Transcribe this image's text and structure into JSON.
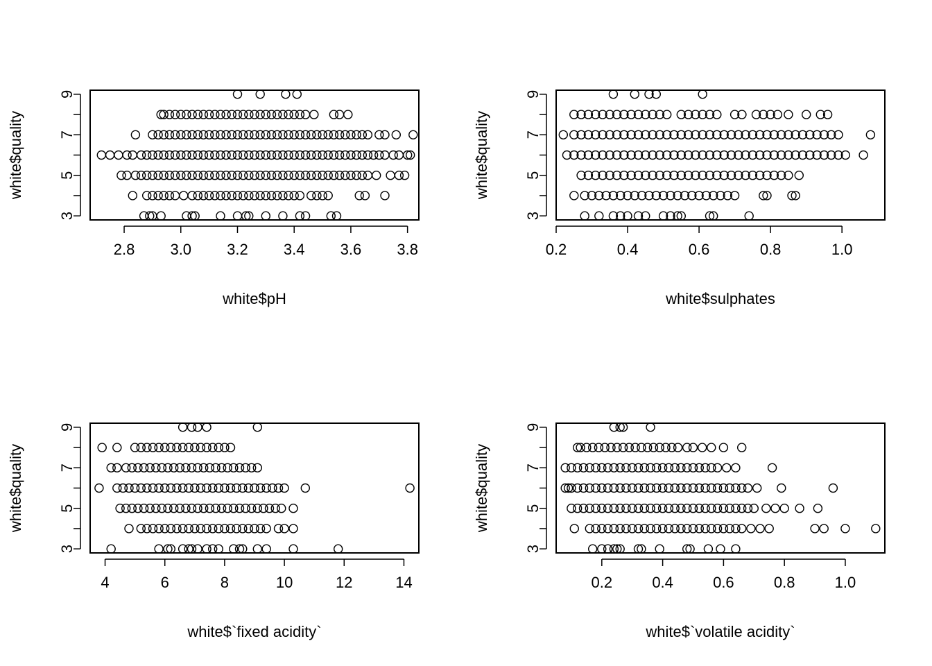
{
  "chart_data": [
    {
      "type": "scatter",
      "xlabel": "white$pH",
      "ylabel": "white$quality",
      "xlim": [
        2.68,
        3.84
      ],
      "ylim": [
        2.8,
        9.2
      ],
      "xticks": [
        2.8,
        3.0,
        3.2,
        3.4,
        3.6,
        3.8
      ],
      "xtick_labels": [
        "2.8",
        "3.0",
        "3.2",
        "3.4",
        "3.6",
        "3.8"
      ],
      "yticks": [
        3,
        4,
        5,
        6,
        7,
        8,
        9
      ],
      "ytick_labels": [
        "3",
        "",
        "5",
        "",
        "7",
        "",
        "9"
      ],
      "points": {
        "3": [
          2.87,
          2.89,
          2.9,
          2.93,
          3.02,
          3.04,
          3.05,
          3.14,
          3.2,
          3.23,
          3.24,
          3.3,
          3.36,
          3.42,
          3.44,
          3.53,
          3.55
        ],
        "4": [
          2.83,
          2.88,
          2.9,
          2.92,
          2.94,
          2.96,
          2.98,
          3.01,
          3.04,
          3.06,
          3.08,
          3.1,
          3.12,
          3.14,
          3.16,
          3.18,
          3.2,
          3.22,
          3.24,
          3.26,
          3.28,
          3.3,
          3.32,
          3.34,
          3.36,
          3.38,
          3.4,
          3.42,
          3.46,
          3.48,
          3.5,
          3.52,
          3.63,
          3.65,
          3.72
        ],
        "5": [
          2.79,
          2.81,
          2.84,
          2.86,
          2.88,
          2.9,
          2.92,
          2.94,
          2.96,
          2.98,
          3.0,
          3.02,
          3.04,
          3.06,
          3.08,
          3.1,
          3.12,
          3.14,
          3.16,
          3.18,
          3.2,
          3.22,
          3.24,
          3.26,
          3.28,
          3.3,
          3.32,
          3.34,
          3.36,
          3.38,
          3.4,
          3.42,
          3.44,
          3.46,
          3.48,
          3.5,
          3.52,
          3.54,
          3.56,
          3.58,
          3.6,
          3.62,
          3.64,
          3.66,
          3.69,
          3.74,
          3.77,
          3.79
        ],
        "6": [
          2.72,
          2.75,
          2.78,
          2.81,
          2.83,
          2.86,
          2.88,
          2.9,
          2.92,
          2.94,
          2.96,
          2.98,
          3.0,
          3.02,
          3.04,
          3.06,
          3.08,
          3.1,
          3.12,
          3.14,
          3.16,
          3.18,
          3.2,
          3.22,
          3.24,
          3.26,
          3.28,
          3.3,
          3.32,
          3.34,
          3.36,
          3.38,
          3.4,
          3.42,
          3.44,
          3.46,
          3.48,
          3.5,
          3.52,
          3.54,
          3.56,
          3.58,
          3.6,
          3.62,
          3.64,
          3.66,
          3.68,
          3.7,
          3.72,
          3.75,
          3.77,
          3.8,
          3.81
        ],
        "7": [
          2.84,
          2.9,
          2.92,
          2.94,
          2.96,
          2.98,
          3.0,
          3.02,
          3.04,
          3.06,
          3.08,
          3.1,
          3.12,
          3.14,
          3.16,
          3.18,
          3.2,
          3.22,
          3.24,
          3.26,
          3.28,
          3.3,
          3.32,
          3.34,
          3.36,
          3.38,
          3.4,
          3.42,
          3.44,
          3.46,
          3.48,
          3.5,
          3.52,
          3.54,
          3.56,
          3.58,
          3.6,
          3.62,
          3.64,
          3.66,
          3.7,
          3.72,
          3.76,
          3.82
        ],
        "8": [
          2.93,
          2.94,
          2.96,
          2.98,
          3.0,
          3.02,
          3.04,
          3.06,
          3.08,
          3.1,
          3.12,
          3.14,
          3.16,
          3.18,
          3.2,
          3.22,
          3.24,
          3.26,
          3.28,
          3.3,
          3.32,
          3.34,
          3.36,
          3.38,
          3.4,
          3.42,
          3.44,
          3.47,
          3.54,
          3.56,
          3.59
        ],
        "9": [
          3.2,
          3.28,
          3.37,
          3.41
        ]
      }
    },
    {
      "type": "scatter",
      "xlabel": "white$sulphates",
      "ylabel": "white$quality",
      "xlim": [
        0.2,
        1.12
      ],
      "ylim": [
        2.8,
        9.2
      ],
      "xticks": [
        0.2,
        0.4,
        0.6,
        0.8,
        1.0
      ],
      "xtick_labels": [
        "0.2",
        "0.4",
        "0.6",
        "0.8",
        "1.0"
      ],
      "yticks": [
        3,
        4,
        5,
        6,
        7,
        8,
        9
      ],
      "ytick_labels": [
        "3",
        "",
        "5",
        "",
        "7",
        "",
        "9"
      ],
      "points": {
        "3": [
          0.28,
          0.32,
          0.36,
          0.38,
          0.4,
          0.43,
          0.45,
          0.5,
          0.52,
          0.54,
          0.55,
          0.63,
          0.64,
          0.74
        ],
        "4": [
          0.25,
          0.28,
          0.3,
          0.32,
          0.34,
          0.36,
          0.38,
          0.4,
          0.42,
          0.44,
          0.46,
          0.48,
          0.5,
          0.52,
          0.54,
          0.56,
          0.58,
          0.6,
          0.62,
          0.64,
          0.66,
          0.68,
          0.7,
          0.78,
          0.79,
          0.86,
          0.87
        ],
        "5": [
          0.27,
          0.29,
          0.31,
          0.33,
          0.35,
          0.37,
          0.39,
          0.41,
          0.43,
          0.45,
          0.47,
          0.49,
          0.51,
          0.53,
          0.55,
          0.57,
          0.59,
          0.61,
          0.63,
          0.65,
          0.67,
          0.69,
          0.71,
          0.73,
          0.75,
          0.77,
          0.79,
          0.81,
          0.83,
          0.85,
          0.88
        ],
        "6": [
          0.23,
          0.25,
          0.27,
          0.29,
          0.31,
          0.33,
          0.35,
          0.37,
          0.39,
          0.41,
          0.43,
          0.45,
          0.47,
          0.49,
          0.51,
          0.53,
          0.55,
          0.57,
          0.59,
          0.61,
          0.63,
          0.65,
          0.67,
          0.69,
          0.71,
          0.73,
          0.75,
          0.77,
          0.79,
          0.81,
          0.83,
          0.85,
          0.87,
          0.89,
          0.91,
          0.93,
          0.95,
          0.97,
          0.99,
          1.01,
          1.06
        ],
        "7": [
          0.22,
          0.25,
          0.27,
          0.29,
          0.31,
          0.33,
          0.35,
          0.37,
          0.39,
          0.41,
          0.43,
          0.45,
          0.47,
          0.49,
          0.51,
          0.53,
          0.55,
          0.57,
          0.59,
          0.61,
          0.63,
          0.65,
          0.67,
          0.69,
          0.71,
          0.73,
          0.75,
          0.77,
          0.79,
          0.81,
          0.83,
          0.85,
          0.87,
          0.89,
          0.91,
          0.93,
          0.95,
          0.97,
          0.99,
          1.08
        ],
        "8": [
          0.25,
          0.27,
          0.29,
          0.31,
          0.33,
          0.35,
          0.37,
          0.39,
          0.41,
          0.43,
          0.45,
          0.47,
          0.49,
          0.51,
          0.55,
          0.57,
          0.59,
          0.61,
          0.63,
          0.65,
          0.7,
          0.72,
          0.76,
          0.78,
          0.8,
          0.82,
          0.85,
          0.9,
          0.94,
          0.96
        ],
        "9": [
          0.36,
          0.42,
          0.46,
          0.48,
          0.61
        ]
      }
    },
    {
      "type": "scatter",
      "xlabel": "white$`fixed acidity`",
      "ylabel": "white$quality",
      "xlim": [
        3.5,
        14.5
      ],
      "ylim": [
        2.8,
        9.2
      ],
      "xticks": [
        4,
        6,
        8,
        10,
        12,
        14
      ],
      "xtick_labels": [
        "4",
        "6",
        "8",
        "10",
        "12",
        "14"
      ],
      "yticks": [
        3,
        4,
        5,
        6,
        7,
        8,
        9
      ],
      "ytick_labels": [
        "3",
        "",
        "5",
        "",
        "7",
        "",
        "9"
      ],
      "points": {
        "3": [
          4.2,
          5.8,
          6.1,
          6.2,
          6.6,
          6.8,
          6.9,
          7.1,
          7.4,
          7.6,
          7.8,
          8.3,
          8.5,
          8.6,
          9.1,
          9.4,
          10.3,
          11.8
        ],
        "4": [
          4.8,
          5.2,
          5.4,
          5.6,
          5.8,
          6.0,
          6.2,
          6.4,
          6.6,
          6.8,
          7.0,
          7.2,
          7.4,
          7.6,
          7.8,
          8.0,
          8.2,
          8.4,
          8.6,
          8.8,
          9.0,
          9.2,
          9.4,
          9.8,
          10.0,
          10.3
        ],
        "5": [
          4.5,
          4.7,
          4.9,
          5.1,
          5.3,
          5.5,
          5.7,
          5.9,
          6.1,
          6.3,
          6.5,
          6.7,
          6.9,
          7.1,
          7.3,
          7.5,
          7.7,
          7.9,
          8.1,
          8.3,
          8.5,
          8.7,
          8.9,
          9.1,
          9.3,
          9.5,
          9.7,
          9.9,
          10.3
        ],
        "6": [
          3.8,
          4.4,
          4.6,
          4.8,
          5.0,
          5.2,
          5.4,
          5.6,
          5.8,
          6.0,
          6.2,
          6.4,
          6.6,
          6.8,
          7.0,
          7.2,
          7.4,
          7.6,
          7.8,
          8.0,
          8.2,
          8.4,
          8.6,
          8.8,
          9.0,
          9.2,
          9.4,
          9.6,
          9.8,
          10.0,
          10.7,
          14.2
        ],
        "7": [
          4.2,
          4.4,
          4.7,
          4.9,
          5.1,
          5.3,
          5.5,
          5.7,
          5.9,
          6.1,
          6.3,
          6.5,
          6.7,
          6.9,
          7.1,
          7.3,
          7.5,
          7.7,
          7.9,
          8.1,
          8.3,
          8.5,
          8.7,
          8.9,
          9.1
        ],
        "8": [
          3.9,
          4.4,
          5.0,
          5.2,
          5.4,
          5.6,
          5.8,
          6.0,
          6.2,
          6.4,
          6.6,
          6.8,
          7.0,
          7.2,
          7.4,
          7.6,
          7.8,
          8.0,
          8.2
        ],
        "9": [
          6.6,
          6.9,
          7.1,
          7.4,
          9.1
        ]
      }
    },
    {
      "type": "scatter",
      "xlabel": "white$`volatile acidity`",
      "ylabel": "white$quality",
      "xlim": [
        0.05,
        1.13
      ],
      "ylim": [
        2.8,
        9.2
      ],
      "xticks": [
        0.2,
        0.4,
        0.6,
        0.8,
        1.0
      ],
      "xtick_labels": [
        "0.2",
        "0.4",
        "0.6",
        "0.8",
        "1.0"
      ],
      "yticks": [
        3,
        4,
        5,
        6,
        7,
        8,
        9
      ],
      "ytick_labels": [
        "3",
        "",
        "5",
        "",
        "7",
        "",
        "9"
      ],
      "points": {
        "3": [
          0.17,
          0.2,
          0.22,
          0.24,
          0.25,
          0.26,
          0.32,
          0.33,
          0.39,
          0.48,
          0.49,
          0.55,
          0.59,
          0.64
        ],
        "4": [
          0.11,
          0.16,
          0.18,
          0.2,
          0.22,
          0.24,
          0.26,
          0.28,
          0.3,
          0.32,
          0.34,
          0.36,
          0.38,
          0.4,
          0.42,
          0.44,
          0.46,
          0.48,
          0.5,
          0.52,
          0.54,
          0.56,
          0.58,
          0.6,
          0.62,
          0.64,
          0.66,
          0.69,
          0.72,
          0.75,
          0.9,
          0.93,
          1.0,
          1.1
        ],
        "5": [
          0.1,
          0.12,
          0.14,
          0.16,
          0.18,
          0.2,
          0.22,
          0.24,
          0.26,
          0.28,
          0.3,
          0.32,
          0.34,
          0.36,
          0.38,
          0.4,
          0.42,
          0.44,
          0.46,
          0.48,
          0.5,
          0.52,
          0.54,
          0.56,
          0.58,
          0.6,
          0.62,
          0.64,
          0.66,
          0.68,
          0.7,
          0.74,
          0.77,
          0.8,
          0.85,
          0.91
        ],
        "6": [
          0.08,
          0.09,
          0.1,
          0.12,
          0.14,
          0.16,
          0.18,
          0.2,
          0.22,
          0.24,
          0.26,
          0.28,
          0.3,
          0.32,
          0.34,
          0.36,
          0.38,
          0.4,
          0.42,
          0.44,
          0.46,
          0.48,
          0.5,
          0.52,
          0.54,
          0.56,
          0.58,
          0.6,
          0.62,
          0.64,
          0.66,
          0.68,
          0.71,
          0.79,
          0.96
        ],
        "7": [
          0.08,
          0.1,
          0.12,
          0.14,
          0.16,
          0.18,
          0.2,
          0.22,
          0.24,
          0.26,
          0.28,
          0.3,
          0.32,
          0.34,
          0.36,
          0.38,
          0.4,
          0.42,
          0.44,
          0.46,
          0.48,
          0.5,
          0.52,
          0.54,
          0.56,
          0.58,
          0.61,
          0.64,
          0.76
        ],
        "8": [
          0.12,
          0.13,
          0.15,
          0.17,
          0.19,
          0.21,
          0.23,
          0.25,
          0.27,
          0.29,
          0.31,
          0.33,
          0.35,
          0.37,
          0.39,
          0.41,
          0.43,
          0.45,
          0.48,
          0.5,
          0.53,
          0.56,
          0.6,
          0.66
        ],
        "9": [
          0.24,
          0.26,
          0.27,
          0.36
        ]
      }
    }
  ]
}
